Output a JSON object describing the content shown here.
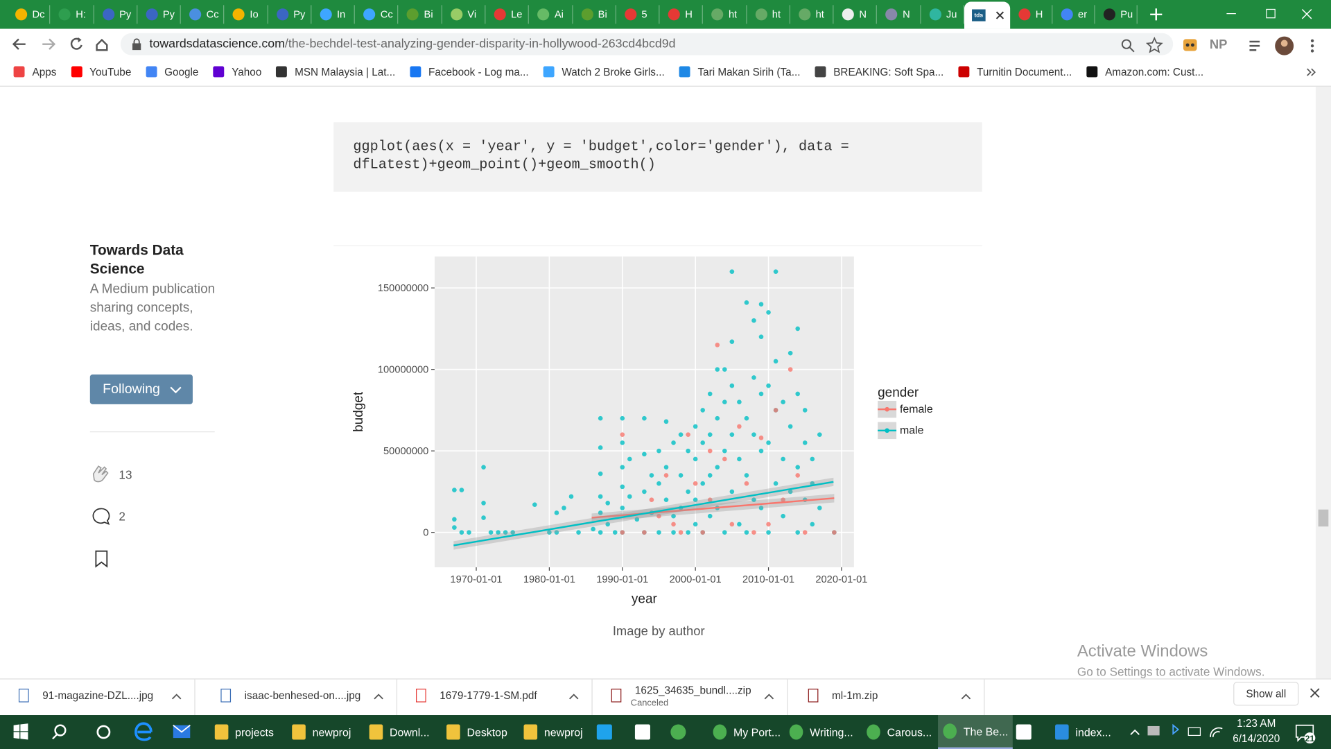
{
  "browser": {
    "tabs": [
      {
        "label": "Dc"
      },
      {
        "label": "H:"
      },
      {
        "label": "Py"
      },
      {
        "label": "Py"
      },
      {
        "label": "Cc"
      },
      {
        "label": "Io"
      },
      {
        "label": "Py"
      },
      {
        "label": "In"
      },
      {
        "label": "Cc"
      },
      {
        "label": "Bi"
      },
      {
        "label": "Vi"
      },
      {
        "label": "Le"
      },
      {
        "label": "Ai"
      },
      {
        "label": "Bi"
      },
      {
        "label": "5"
      },
      {
        "label": "H"
      },
      {
        "label": "ht"
      },
      {
        "label": "ht"
      },
      {
        "label": "ht"
      },
      {
        "label": "N"
      },
      {
        "label": "N"
      },
      {
        "label": "Ju"
      },
      {
        "icon": "tds",
        "active": true
      },
      {
        "label": "H"
      },
      {
        "label": "er"
      },
      {
        "label": "Pu"
      }
    ],
    "url_domain": "towardsdatascience.com",
    "url_path": "/the-bechdel-test-analyzing-gender-disparity-in-hollywood-263cd4bcd9d",
    "profile": "NP",
    "bookmarks": [
      "Apps",
      "YouTube",
      "Google",
      "Yahoo",
      "MSN Malaysia | Lat...",
      "Facebook - Log ma...",
      "Watch 2 Broke Girls...",
      "Tari Makan Sirih (Ta...",
      "BREAKING: Soft Spa...",
      "Turnitin Document...",
      "Amazon.com: Cust..."
    ]
  },
  "article": {
    "code_lines": [
      "ggplot(aes(x = 'year', y = 'budget',color='gender'), data =",
      "dfLatest)+geom_point()+geom_smooth()"
    ],
    "publication": {
      "name": "Towards Data Science",
      "description": "A Medium publication sharing concepts, ideas, and codes.",
      "button": "Following",
      "claps": 13,
      "comments": 2
    },
    "caption": "Image by author"
  },
  "chart_data": {
    "type": "scatter",
    "x_label": "year",
    "y_label": "budget",
    "legend_title": "gender",
    "xlim": [
      1964.3,
      2021.7
    ],
    "ylim": [
      -21400000,
      169300000
    ],
    "xticks": [
      {
        "value": 1970,
        "label": "1970-01-01"
      },
      {
        "value": 1980,
        "label": "1980-01-01"
      },
      {
        "value": 1990,
        "label": "1990-01-01"
      },
      {
        "value": 2000,
        "label": "2000-01-01"
      },
      {
        "value": 2010,
        "label": "2010-01-01"
      },
      {
        "value": 2020,
        "label": "2020-01-01"
      }
    ],
    "yticks": [
      0,
      50000000,
      100000000,
      150000000
    ],
    "grid": true,
    "series": [
      {
        "name": "female",
        "color": "#F8766D",
        "x": [
          1990,
          1990,
          1993,
          1994,
          1995,
          1996,
          1997,
          1998,
          1999,
          2000,
          2001,
          2002,
          2002,
          2003,
          2004,
          2005,
          2006,
          2007,
          2008,
          2009,
          2010,
          2011,
          2012,
          2013,
          2014,
          2015,
          2019
        ],
        "values": [
          60000000,
          0,
          0,
          20000000,
          10000000,
          35000000,
          5000000,
          0,
          60000000,
          30000000,
          0,
          50000000,
          20000000,
          115000000,
          45000000,
          5000000,
          65000000,
          30000000,
          0,
          58000000,
          5000000,
          75000000,
          20000000,
          100000000,
          35000000,
          0,
          0
        ],
        "smooth_x": [
          1985.8,
          2019
        ],
        "smooth_values": [
          9000000,
          21000000
        ]
      },
      {
        "name": "male",
        "color": "#00BFC4",
        "x": [
          1967,
          1968,
          1967,
          1967,
          1968,
          1969,
          1971,
          1971,
          1971,
          1972,
          1973,
          1974,
          1975,
          1978,
          1980,
          1981,
          1981,
          1982,
          1983,
          1984,
          1986,
          1987,
          1987,
          1987,
          1987,
          1987,
          1987,
          1988,
          1988,
          1989,
          1990,
          1990,
          1990,
          1990,
          1990,
          1990,
          1991,
          1991,
          1992,
          1993,
          1993,
          1993,
          1993,
          1994,
          1994,
          1995,
          1995,
          1995,
          1996,
          1996,
          1996,
          1997,
          1997,
          1997,
          1998,
          1998,
          1998,
          1999,
          1999,
          1999,
          2000,
          2000,
          2000,
          2000,
          2001,
          2001,
          2001,
          2001,
          2002,
          2002,
          2002,
          2002,
          2003,
          2003,
          2003,
          2003,
          2004,
          2004,
          2004,
          2004,
          2005,
          2005,
          2005,
          2005,
          2005,
          2006,
          2006,
          2006,
          2007,
          2007,
          2007,
          2007,
          2008,
          2008,
          2008,
          2008,
          2009,
          2009,
          2009,
          2009,
          2009,
          2010,
          2010,
          2010,
          2010,
          2011,
          2011,
          2011,
          2011,
          2012,
          2012,
          2012,
          2013,
          2013,
          2013,
          2014,
          2014,
          2014,
          2014,
          2015,
          2015,
          2015,
          2016,
          2016,
          2016,
          2017,
          2017,
          2019
        ],
        "values": [
          26000000,
          26000000,
          8000000,
          3000000,
          0,
          0,
          40000000,
          18000000,
          9000000,
          0,
          0,
          0,
          0,
          17000000,
          0,
          12000000,
          0,
          15000000,
          22000000,
          0,
          2000000,
          70000000,
          52000000,
          36000000,
          22000000,
          12000000,
          0,
          18000000,
          5000000,
          0,
          70000000,
          55000000,
          40000000,
          28000000,
          15000000,
          0,
          45000000,
          22000000,
          8000000,
          70000000,
          48000000,
          25000000,
          0,
          35000000,
          12000000,
          50000000,
          30000000,
          0,
          68000000,
          40000000,
          20000000,
          55000000,
          10000000,
          0,
          60000000,
          35000000,
          15000000,
          50000000,
          25000000,
          0,
          65000000,
          45000000,
          20000000,
          5000000,
          75000000,
          55000000,
          30000000,
          0,
          85000000,
          60000000,
          35000000,
          10000000,
          100000000,
          70000000,
          40000000,
          15000000,
          100000000,
          80000000,
          50000000,
          0,
          160000000,
          117000000,
          90000000,
          60000000,
          25000000,
          80000000,
          45000000,
          5000000,
          141000000,
          70000000,
          35000000,
          0,
          130000000,
          95000000,
          60000000,
          20000000,
          140000000,
          120000000,
          85000000,
          50000000,
          15000000,
          135000000,
          90000000,
          55000000,
          0,
          160000000,
          105000000,
          75000000,
          30000000,
          80000000,
          45000000,
          10000000,
          110000000,
          65000000,
          25000000,
          125000000,
          85000000,
          40000000,
          0,
          75000000,
          55000000,
          20000000,
          45000000,
          30000000,
          5000000,
          60000000,
          15000000,
          0
        ],
        "smooth_x": [
          1966.9,
          2018.9
        ],
        "smooth_values": [
          -8000000,
          31000000
        ]
      }
    ]
  },
  "watermark": {
    "title": "Activate Windows",
    "text": "Go to Settings to activate Windows."
  },
  "downloads": {
    "items": [
      {
        "name": "91-magazine-DZL....jpg"
      },
      {
        "name": "isaac-benhesed-on....jpg"
      },
      {
        "name": "1679-1779-1-SM.pdf"
      },
      {
        "name": "1625_34635_bundl....zip",
        "status": "Canceled"
      },
      {
        "name": "ml-1m.zip"
      }
    ],
    "show_all": "Show all"
  },
  "taskbar": {
    "items": [
      "projects",
      "newproj",
      "Downl...",
      "Desktop",
      "newproj",
      "My Port...",
      "Writing...",
      "Carous...",
      "The Be...",
      "index..."
    ],
    "time": "1:23 AM",
    "date": "6/14/2020",
    "notifications": "21"
  }
}
